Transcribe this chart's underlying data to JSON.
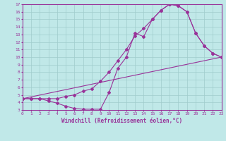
{
  "xlabel": "Windchill (Refroidissement éolien,°C)",
  "xlim": [
    0,
    23
  ],
  "ylim": [
    3,
    17
  ],
  "xticks": [
    0,
    1,
    2,
    3,
    4,
    5,
    6,
    7,
    8,
    9,
    10,
    11,
    12,
    13,
    14,
    15,
    16,
    17,
    18,
    19,
    20,
    21,
    22,
    23
  ],
  "yticks": [
    3,
    4,
    5,
    6,
    7,
    8,
    9,
    10,
    11,
    12,
    13,
    14,
    15,
    16,
    17
  ],
  "bg_color": "#c0e8e8",
  "line_color": "#993399",
  "grid_color": "#a0cccc",
  "curve1_x": [
    0,
    1,
    2,
    3,
    4,
    5,
    6,
    7,
    8,
    9,
    10,
    11,
    12,
    13,
    14,
    15,
    16,
    17,
    18,
    19,
    20,
    21,
    22,
    23
  ],
  "curve1_y": [
    4.5,
    4.5,
    4.5,
    4.2,
    3.9,
    3.5,
    3.2,
    3.1,
    3.1,
    3.1,
    5.3,
    8.5,
    10.0,
    13.2,
    12.7,
    15.0,
    16.2,
    17.0,
    16.8,
    16.0,
    13.2,
    11.5,
    10.5,
    10.0
  ],
  "curve2_x": [
    0,
    1,
    2,
    3,
    4,
    5,
    6,
    7,
    8,
    9,
    10,
    11,
    12,
    13,
    14,
    15,
    16,
    17,
    18,
    19,
    20,
    21,
    22,
    23
  ],
  "curve2_y": [
    4.5,
    4.5,
    4.5,
    4.5,
    4.5,
    4.8,
    5.0,
    5.5,
    5.8,
    6.8,
    8.0,
    9.5,
    11.0,
    12.8,
    13.8,
    15.0,
    16.2,
    17.0,
    16.8,
    16.0,
    13.2,
    11.5,
    10.5,
    10.0
  ],
  "curve3_x": [
    0,
    23
  ],
  "curve3_y": [
    4.5,
    10.0
  ]
}
